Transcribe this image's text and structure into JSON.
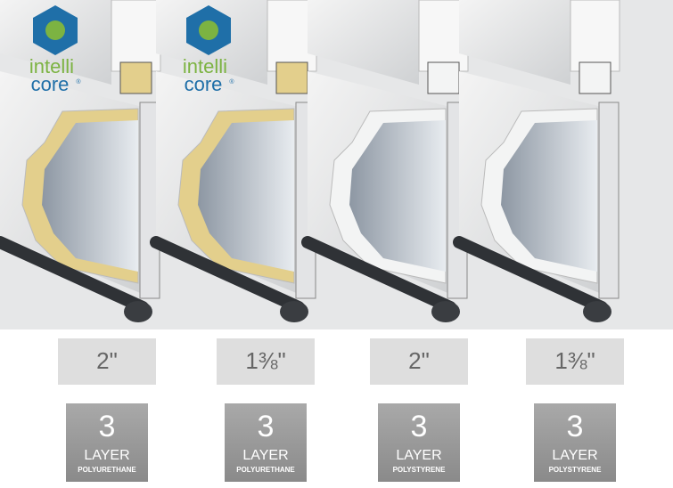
{
  "logos": [
    {
      "line1": "intelli",
      "line2": "core",
      "mark": "®"
    },
    {
      "line1": "intelli",
      "line2": "core",
      "mark": "®"
    }
  ],
  "panels": [
    {
      "thickness": "2\"",
      "layers": "3",
      "layer_word": "LAYER",
      "insulation": "POLYURETHANE"
    },
    {
      "thickness": "1⅜\"",
      "layers": "3",
      "layer_word": "LAYER",
      "insulation": "POLYURETHANE"
    },
    {
      "thickness": "2\"",
      "layers": "3",
      "layer_word": "LAYER",
      "insulation": "POLYSTYRENE"
    },
    {
      "thickness": "1⅜\"",
      "layers": "3",
      "layer_word": "LAYER",
      "insulation": "POLYSTYRENE"
    }
  ]
}
